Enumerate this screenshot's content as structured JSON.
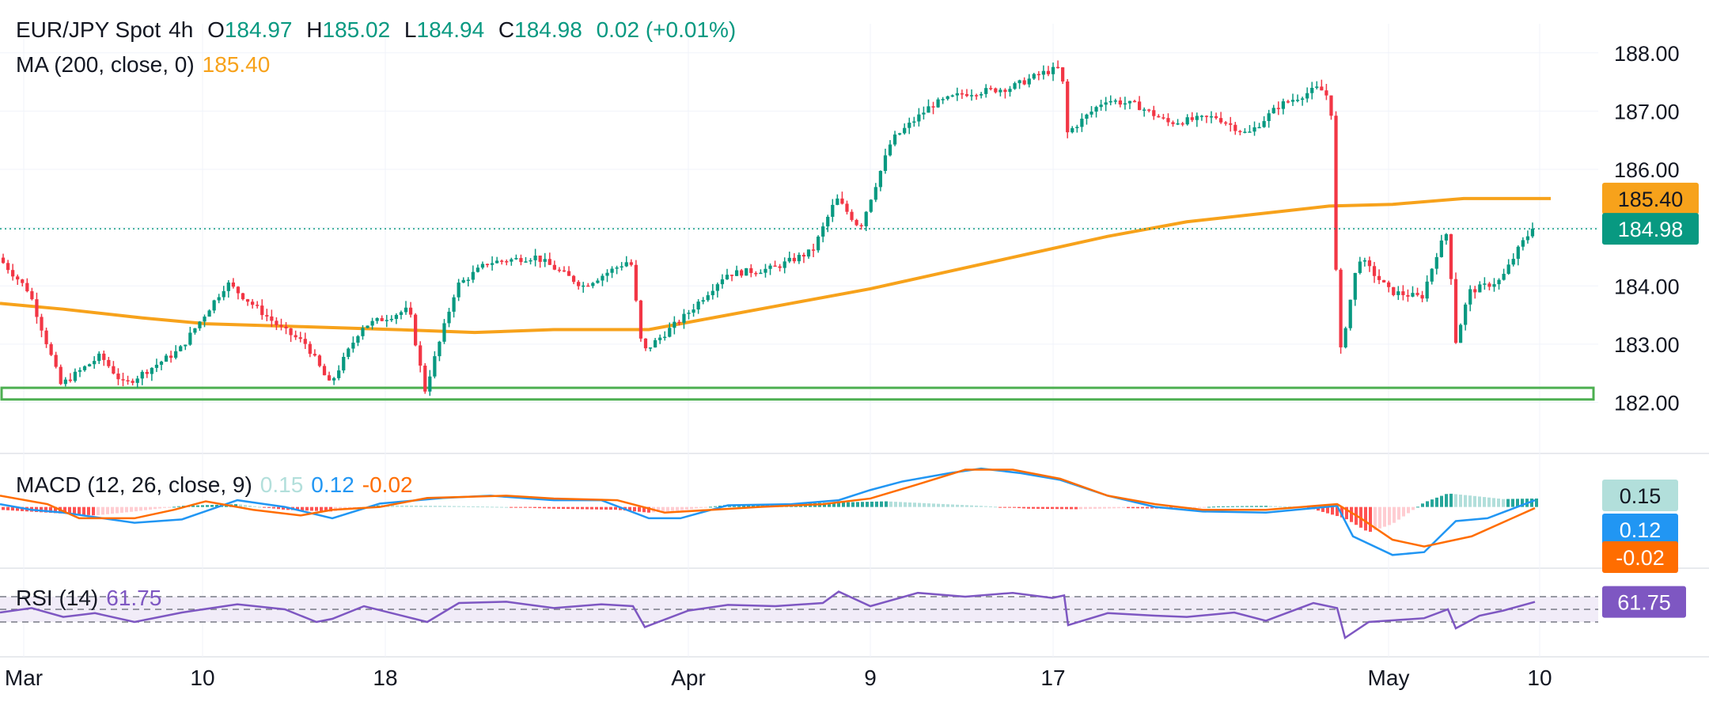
{
  "header": {
    "symbol": "EUR/JPY Spot",
    "interval": "4h",
    "open_label": "O",
    "open": "184.97",
    "high_label": "H",
    "high": "185.02",
    "low_label": "L",
    "low": "184.94",
    "close_label": "C",
    "close": "184.98",
    "change": "0.02 (+0.01%)"
  },
  "ma_legend": {
    "label": "MA (200, close, 0)",
    "value": "185.40"
  },
  "macd_legend": {
    "label": "MACD (12, 26, close, 9)",
    "hist": "0.15",
    "macd": "0.12",
    "signal": "-0.02"
  },
  "rsi_legend": {
    "label": "RSI (14)",
    "value": "61.75"
  },
  "colors": {
    "up": "#089981",
    "down": "#f23645",
    "ma": "#f7a21b",
    "support": "#4caf50",
    "macd": "#2196f3",
    "signal": "#ff6d00",
    "hist_up_strong": "#26a69a",
    "hist_up_weak": "#b2dfdb",
    "hist_down_strong": "#ff5252",
    "hist_down_weak": "#ffcdd2",
    "rsi": "#7e57c2"
  },
  "chart_data": {
    "type": "candlestick",
    "y_axis": {
      "ticks": [
        "188.00",
        "187.00",
        "186.00",
        "185.00",
        "184.00",
        "183.00",
        "182.00"
      ],
      "range": [
        181.3,
        188.5
      ]
    },
    "x_axis": {
      "ticks": [
        "Mar",
        "10",
        "18",
        "Apr",
        "9",
        "17",
        "May",
        "10"
      ]
    },
    "price_badges": {
      "ma": "185.40",
      "last": "184.98"
    },
    "last_price": 184.98,
    "support_zone": [
      182.05,
      182.25
    ],
    "price_path": [
      [
        0,
        184.5
      ],
      [
        40,
        183.9
      ],
      [
        80,
        182.3
      ],
      [
        130,
        182.8
      ],
      [
        160,
        182.3
      ],
      [
        230,
        182.9
      ],
      [
        290,
        184.05
      ],
      [
        360,
        183.25
      ],
      [
        390,
        183.0
      ],
      [
        420,
        182.3
      ],
      [
        460,
        183.3
      ],
      [
        520,
        183.6
      ],
      [
        540,
        182.2
      ],
      [
        580,
        184.0
      ],
      [
        620,
        184.4
      ],
      [
        680,
        184.5
      ],
      [
        740,
        184.0
      ],
      [
        800,
        184.45
      ],
      [
        815,
        182.85
      ],
      [
        870,
        183.5
      ],
      [
        920,
        184.2
      ],
      [
        980,
        184.3
      ],
      [
        1030,
        184.6
      ],
      [
        1060,
        185.5
      ],
      [
        1090,
        185.0
      ],
      [
        1130,
        186.5
      ],
      [
        1180,
        187.1
      ],
      [
        1220,
        187.3
      ],
      [
        1280,
        187.4
      ],
      [
        1320,
        187.65
      ],
      [
        1345,
        187.75
      ],
      [
        1350,
        186.6
      ],
      [
        1400,
        187.2
      ],
      [
        1440,
        187.1
      ],
      [
        1480,
        186.8
      ],
      [
        1540,
        186.9
      ],
      [
        1580,
        186.6
      ],
      [
        1620,
        187.1
      ],
      [
        1670,
        187.4
      ],
      [
        1685,
        187.2
      ],
      [
        1695,
        182.7
      ],
      [
        1720,
        184.5
      ],
      [
        1760,
        183.9
      ],
      [
        1800,
        183.8
      ],
      [
        1820,
        184.6
      ],
      [
        1835,
        185.0
      ],
      [
        1840,
        182.9
      ],
      [
        1860,
        183.9
      ],
      [
        1900,
        184.1
      ],
      [
        1925,
        184.7
      ],
      [
        1940,
        184.98
      ]
    ],
    "ma200_path": [
      [
        0,
        183.7
      ],
      [
        80,
        183.6
      ],
      [
        180,
        183.45
      ],
      [
        260,
        183.35
      ],
      [
        380,
        183.3
      ],
      [
        500,
        183.25
      ],
      [
        600,
        183.2
      ],
      [
        700,
        183.25
      ],
      [
        820,
        183.25
      ],
      [
        900,
        183.45
      ],
      [
        1000,
        183.7
      ],
      [
        1100,
        183.95
      ],
      [
        1200,
        184.25
      ],
      [
        1300,
        184.55
      ],
      [
        1400,
        184.85
      ],
      [
        1500,
        185.1
      ],
      [
        1600,
        185.25
      ],
      [
        1680,
        185.37
      ],
      [
        1760,
        185.4
      ],
      [
        1850,
        185.5
      ],
      [
        1960,
        185.5
      ]
    ],
    "macd": {
      "label": "MACD (12, 26, close, 9)",
      "macd_line": [
        [
          0,
          0.05
        ],
        [
          40,
          -0.05
        ],
        [
          80,
          -0.1
        ],
        [
          170,
          -0.28
        ],
        [
          230,
          -0.22
        ],
        [
          300,
          0.12
        ],
        [
          360,
          0.0
        ],
        [
          420,
          -0.2
        ],
        [
          480,
          0.06
        ],
        [
          560,
          0.16
        ],
        [
          620,
          0.2
        ],
        [
          700,
          0.12
        ],
        [
          760,
          0.12
        ],
        [
          820,
          -0.2
        ],
        [
          860,
          -0.2
        ],
        [
          920,
          0.03
        ],
        [
          1000,
          0.05
        ],
        [
          1060,
          0.12
        ],
        [
          1100,
          0.3
        ],
        [
          1140,
          0.45
        ],
        [
          1200,
          0.6
        ],
        [
          1240,
          0.68
        ],
        [
          1290,
          0.6
        ],
        [
          1340,
          0.48
        ],
        [
          1400,
          0.2
        ],
        [
          1460,
          0.0
        ],
        [
          1520,
          -0.08
        ],
        [
          1600,
          -0.1
        ],
        [
          1690,
          0.02
        ],
        [
          1710,
          -0.52
        ],
        [
          1760,
          -0.85
        ],
        [
          1800,
          -0.8
        ],
        [
          1840,
          -0.25
        ],
        [
          1880,
          -0.2
        ],
        [
          1940,
          0.12
        ]
      ],
      "signal_line": [
        [
          0,
          0.2
        ],
        [
          60,
          0.05
        ],
        [
          100,
          -0.2
        ],
        [
          170,
          -0.2
        ],
        [
          220,
          -0.05
        ],
        [
          260,
          0.1
        ],
        [
          320,
          -0.05
        ],
        [
          380,
          -0.15
        ],
        [
          420,
          -0.05
        ],
        [
          480,
          0.0
        ],
        [
          540,
          0.16
        ],
        [
          640,
          0.2
        ],
        [
          700,
          0.15
        ],
        [
          780,
          0.12
        ],
        [
          840,
          -0.1
        ],
        [
          900,
          -0.05
        ],
        [
          960,
          0.0
        ],
        [
          1040,
          0.05
        ],
        [
          1100,
          0.15
        ],
        [
          1160,
          0.4
        ],
        [
          1220,
          0.66
        ],
        [
          1280,
          0.66
        ],
        [
          1340,
          0.5
        ],
        [
          1400,
          0.2
        ],
        [
          1460,
          0.05
        ],
        [
          1520,
          -0.05
        ],
        [
          1600,
          -0.05
        ],
        [
          1690,
          0.05
        ],
        [
          1720,
          -0.2
        ],
        [
          1760,
          -0.58
        ],
        [
          1800,
          -0.7
        ],
        [
          1860,
          -0.52
        ],
        [
          1940,
          -0.02
        ]
      ],
      "histogram": [
        [
          0,
          -0.05
        ],
        [
          60,
          -0.1
        ],
        [
          120,
          -0.15
        ],
        [
          170,
          -0.08
        ],
        [
          230,
          0.02
        ],
        [
          300,
          0.05
        ],
        [
          360,
          -0.05
        ],
        [
          420,
          -0.08
        ],
        [
          480,
          0.03
        ],
        [
          560,
          0.02
        ],
        [
          640,
          0.0
        ],
        [
          700,
          -0.03
        ],
        [
          780,
          -0.05
        ],
        [
          820,
          -0.1
        ],
        [
          860,
          -0.06
        ],
        [
          920,
          0.04
        ],
        [
          1000,
          0.06
        ],
        [
          1060,
          0.08
        ],
        [
          1120,
          0.1
        ],
        [
          1180,
          0.06
        ],
        [
          1240,
          0.02
        ],
        [
          1300,
          -0.03
        ],
        [
          1360,
          -0.04
        ],
        [
          1420,
          -0.02
        ],
        [
          1480,
          -0.03
        ],
        [
          1540,
          0.01
        ],
        [
          1600,
          0.02
        ],
        [
          1650,
          0.0
        ],
        [
          1700,
          -0.2
        ],
        [
          1730,
          -0.45
        ],
        [
          1760,
          -0.3
        ],
        [
          1800,
          0.08
        ],
        [
          1830,
          0.24
        ],
        [
          1860,
          0.2
        ],
        [
          1900,
          0.14
        ],
        [
          1940,
          0.15
        ]
      ],
      "badges": {
        "hist": "0.15",
        "macd": "0.12",
        "signal": "-0.02"
      },
      "range": [
        -1.0,
        0.85
      ]
    },
    "rsi": {
      "label": "RSI (14)",
      "line": [
        [
          0,
          45
        ],
        [
          40,
          52
        ],
        [
          80,
          38
        ],
        [
          120,
          44
        ],
        [
          170,
          30
        ],
        [
          230,
          45
        ],
        [
          300,
          58
        ],
        [
          360,
          50
        ],
        [
          400,
          30
        ],
        [
          420,
          35
        ],
        [
          460,
          55
        ],
        [
          540,
          30
        ],
        [
          580,
          60
        ],
        [
          640,
          62
        ],
        [
          700,
          52
        ],
        [
          760,
          58
        ],
        [
          800,
          55
        ],
        [
          815,
          22
        ],
        [
          870,
          48
        ],
        [
          920,
          57
        ],
        [
          980,
          55
        ],
        [
          1040,
          60
        ],
        [
          1060,
          78
        ],
        [
          1100,
          55
        ],
        [
          1160,
          76
        ],
        [
          1220,
          70
        ],
        [
          1280,
          76
        ],
        [
          1330,
          68
        ],
        [
          1345,
          72
        ],
        [
          1350,
          25
        ],
        [
          1400,
          44
        ],
        [
          1460,
          40
        ],
        [
          1500,
          38
        ],
        [
          1560,
          45
        ],
        [
          1600,
          32
        ],
        [
          1660,
          60
        ],
        [
          1690,
          52
        ],
        [
          1700,
          5
        ],
        [
          1730,
          30
        ],
        [
          1800,
          36
        ],
        [
          1830,
          50
        ],
        [
          1840,
          20
        ],
        [
          1870,
          40
        ],
        [
          1900,
          48
        ],
        [
          1940,
          61.75
        ]
      ],
      "levels": [
        70,
        50,
        30
      ],
      "range": [
        0,
        100
      ],
      "badge": "61.75"
    }
  }
}
